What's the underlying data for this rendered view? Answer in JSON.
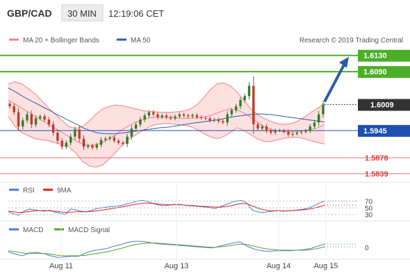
{
  "header": {
    "symbol": "GBP/CAD",
    "timeframe": "30 MIN",
    "time": "12:19:06 CET"
  },
  "legend": {
    "bb_label": "MA 20 + Bollinger Bands",
    "ma50_label": "MA 50",
    "copyright": "Research © 2019 Trading Central"
  },
  "colors": {
    "bollinger_line": "#f08080",
    "bollinger_fill": "#fde0e0",
    "ma50": "#2a5ca8",
    "candle_up": "#2d7d2d",
    "candle_down": "#c0392b",
    "level_green": "#4caf2a",
    "level_blue": "#1f4fb0",
    "level_red": "#e07070",
    "current_bg": "#333333",
    "arrow": "#2a5ca8",
    "rsi": "#4a7ad8",
    "ma9": "#e02020",
    "macd": "#4a7ad8",
    "macd_signal": "#5aa02a"
  },
  "chart_data": [
    {
      "type": "candlestick",
      "title": "GBP/CAD 30 MIN",
      "x_labels": [
        "Aug 11",
        "Aug 13",
        "Aug 14",
        "Aug 15"
      ],
      "ylim": [
        1.5825,
        1.615
      ],
      "current_price": "1.6009",
      "levels": [
        {
          "label": "1.6130",
          "value": 1.613,
          "kind": "resistance"
        },
        {
          "label": "1.6090",
          "value": 1.609,
          "kind": "resistance"
        },
        {
          "label": "1.5945",
          "value": 1.5945,
          "kind": "pivot"
        },
        {
          "label": "1.5878",
          "value": 1.5878,
          "kind": "support"
        },
        {
          "label": "1.5839",
          "value": 1.5839,
          "kind": "support"
        }
      ],
      "closes": [
        1.6005,
        1.599,
        1.5955,
        1.597,
        1.5985,
        1.596,
        1.5975,
        1.598,
        1.5972,
        1.596,
        1.594,
        1.592,
        1.5905,
        1.5915,
        1.593,
        1.5948,
        1.5925,
        1.5905,
        1.5908,
        1.5903,
        1.591,
        1.5922,
        1.5925,
        1.5928,
        1.592,
        1.5915,
        1.5912,
        1.593,
        1.595,
        1.596,
        1.5972,
        1.5982,
        1.599,
        1.5985,
        1.5978,
        1.5982,
        1.5978,
        1.5975,
        1.598,
        1.5985,
        1.5982,
        1.598,
        1.5983,
        1.5978,
        1.5976,
        1.5975,
        1.597,
        1.5972,
        1.5968,
        1.5965,
        1.5985,
        1.5995,
        1.6005,
        1.602,
        1.603,
        1.6055,
        1.596,
        1.595,
        1.5955,
        1.5945,
        1.594,
        1.5945,
        1.5945,
        1.5942,
        1.5935,
        1.5937,
        1.594,
        1.5942,
        1.5945,
        1.5955,
        1.5965,
        1.5985,
        1.6009
      ],
      "ma50": [
        1.605,
        1.6042,
        1.6033,
        1.6025,
        1.6017,
        1.601,
        1.6002,
        1.5995,
        1.5987,
        1.598,
        1.5972,
        1.5965,
        1.5958,
        1.595,
        1.5945,
        1.594,
        1.5938,
        1.5937,
        1.5937,
        1.5938,
        1.594,
        1.5942,
        1.5944,
        1.5946,
        1.5948,
        1.595,
        1.5952,
        1.5953,
        1.5955,
        1.5957,
        1.596,
        1.5962,
        1.5964,
        1.5966,
        1.5968,
        1.597,
        1.5972,
        1.5975,
        1.5978,
        1.598,
        1.5982,
        1.5984,
        1.5985,
        1.5986,
        1.5985,
        1.5984,
        1.5982,
        1.598,
        1.5978,
        1.5976,
        1.5974,
        1.5972,
        1.597,
        1.5968,
        1.5966
      ],
      "bb_mid": [
        1.602,
        1.601,
        1.6,
        1.599,
        1.598,
        1.597,
        1.596,
        1.595,
        1.594,
        1.593,
        1.592,
        1.5912,
        1.5908,
        1.591,
        1.5915,
        1.5925,
        1.5935,
        1.5948,
        1.5958,
        1.5966,
        1.5972,
        1.5976,
        1.5978,
        1.5978,
        1.5977,
        1.5976,
        1.5975,
        1.5975,
        1.5976,
        1.5978,
        1.5982,
        1.5988,
        1.5994,
        1.5998,
        1.5996,
        1.5988,
        1.5978,
        1.5966,
        1.5955,
        1.5948,
        1.5944,
        1.5942,
        1.5942,
        1.5943,
        1.5945,
        1.5948,
        1.5952,
        1.596
      ],
      "bb_up": [
        1.606,
        1.6065,
        1.606,
        1.6048,
        1.6035,
        1.6018,
        1.6,
        1.5985,
        1.597,
        1.5955,
        1.595,
        1.5955,
        1.5968,
        1.5985,
        1.5998,
        1.6005,
        1.6008,
        1.6006,
        1.6002,
        1.5998,
        1.5994,
        1.5992,
        1.5991,
        1.599,
        1.599,
        1.5991,
        1.5993,
        1.5998,
        1.6008,
        1.6025,
        1.6045,
        1.606,
        1.6062,
        1.6055,
        1.604,
        1.602,
        1.6,
        1.5985,
        1.5975,
        1.5968,
        1.5962,
        1.596,
        1.5962,
        1.5968,
        1.5978,
        1.599,
        1.6,
        1.6012
      ],
      "bb_low": [
        1.598,
        1.5955,
        1.594,
        1.5932,
        1.5925,
        1.5922,
        1.592,
        1.5915,
        1.591,
        1.5905,
        1.589,
        1.587,
        1.5858,
        1.5855,
        1.586,
        1.5875,
        1.5892,
        1.591,
        1.5925,
        1.5935,
        1.5945,
        1.5955,
        1.596,
        1.5962,
        1.5962,
        1.596,
        1.5958,
        1.5955,
        1.5948,
        1.5938,
        1.593,
        1.5925,
        1.593,
        1.594,
        1.5952,
        1.5945,
        1.5935,
        1.5925,
        1.5918,
        1.5918,
        1.5922,
        1.5926,
        1.5928,
        1.5928,
        1.5925,
        1.592,
        1.5915,
        1.5912
      ]
    },
    {
      "type": "line",
      "title": "RSI",
      "series": [
        {
          "name": "RSI",
          "values": [
            38,
            32,
            28,
            40,
            46,
            44,
            42,
            40,
            43,
            37,
            34,
            30,
            46,
            44,
            40,
            38,
            42,
            48,
            50,
            52,
            54,
            55,
            58,
            62,
            66,
            70,
            72,
            68,
            62,
            58,
            56,
            58,
            60,
            60,
            58,
            56,
            55,
            54,
            52,
            50,
            48,
            54,
            60,
            66,
            70,
            72,
            64,
            44,
            38,
            36,
            38,
            40,
            42,
            40,
            41,
            42,
            44,
            46,
            50,
            56,
            64,
            70
          ]
        },
        {
          "name": "9MA",
          "values": [
            40,
            38,
            36,
            37,
            39,
            41,
            42,
            42,
            41,
            40,
            38,
            36,
            37,
            38,
            38,
            38,
            39,
            41,
            43,
            45,
            48,
            50,
            53,
            56,
            59,
            62,
            64,
            64,
            63,
            61,
            60,
            59,
            59,
            59,
            58,
            57,
            56,
            55,
            54,
            53,
            52,
            52,
            54,
            56,
            60,
            63,
            62,
            56,
            50,
            45,
            42,
            41,
            41,
            41,
            41,
            42,
            43,
            44,
            46,
            49,
            53,
            58
          ]
        }
      ],
      "yticks": [
        30,
        50,
        70
      ],
      "ylim": [
        15,
        85
      ]
    },
    {
      "type": "line",
      "title": "MACD",
      "series": [
        {
          "name": "MACD",
          "values": [
            -0.0008,
            -0.0012,
            -0.0015,
            -0.001,
            -0.0009,
            -0.0011,
            -0.0015,
            -0.0018,
            -0.0017,
            -0.0016,
            -0.0016,
            -0.001,
            -0.0006,
            -0.0004,
            -0.0002,
            0.0002,
            0.0005,
            0.0009,
            0.0011,
            0.0011,
            0.0009,
            0.0007,
            0.0006,
            0.0005,
            0.0004,
            0.0003,
            0.0002,
            0.0001,
            0.0,
            -0.0001,
            0.0002,
            0.0005,
            0.0008,
            0.001,
            0.0002,
            -0.0003,
            -0.0006,
            -0.0007,
            -0.0006,
            -0.0006,
            -0.0006,
            -0.0005,
            -0.0004,
            -0.0002,
            0.0002,
            0.0006
          ]
        },
        {
          "name": "MACD Signal",
          "values": [
            -0.0006,
            -0.0008,
            -0.001,
            -0.0011,
            -0.0011,
            -0.0011,
            -0.0012,
            -0.0014,
            -0.0015,
            -0.0015,
            -0.0015,
            -0.0014,
            -0.0012,
            -0.001,
            -0.0008,
            -0.0005,
            -0.0002,
            0.0002,
            0.0005,
            0.0007,
            0.0008,
            0.0008,
            0.0007,
            0.0006,
            0.0005,
            0.0004,
            0.0003,
            0.0002,
            0.0001,
            0.0,
            0.0001,
            0.0002,
            0.0004,
            0.0006,
            0.0005,
            0.0002,
            -0.0001,
            -0.0003,
            -0.0004,
            -0.0005,
            -0.0005,
            -0.0005,
            -0.0005,
            -0.0004,
            -0.0002,
            0.0001
          ]
        }
      ],
      "yticks": [
        0
      ],
      "ylim": [
        -0.002,
        0.002
      ]
    }
  ]
}
